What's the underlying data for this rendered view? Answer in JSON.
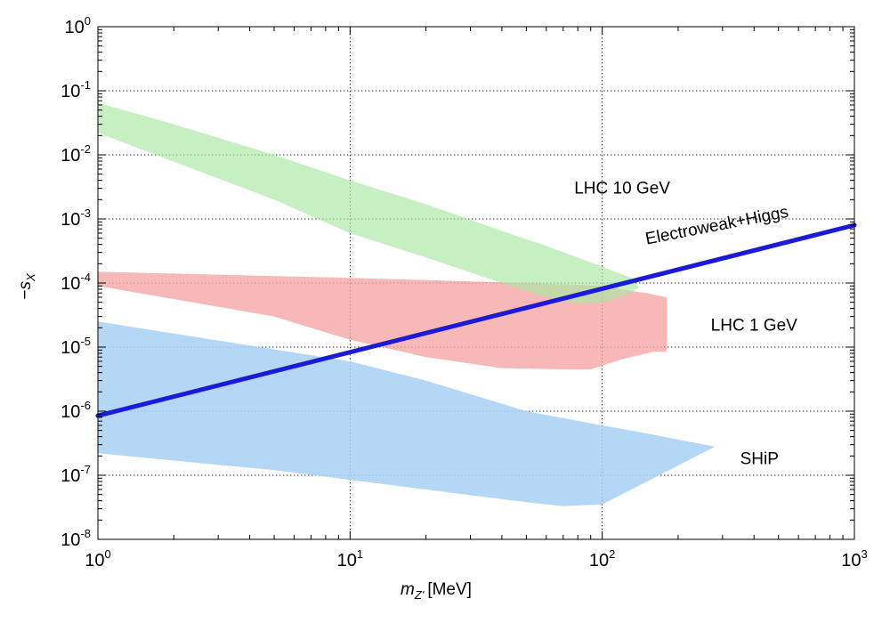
{
  "chart_data": {
    "type": "area",
    "title": "",
    "xlabel": {
      "main": "m",
      "sub": "Z'",
      "unit": "[MeV]"
    },
    "ylabel": {
      "prefix": "−",
      "main": "s",
      "sub": "X"
    },
    "xscale": "log",
    "yscale": "log",
    "xlim": [
      1,
      1000
    ],
    "ylim": [
      1e-08,
      1
    ],
    "grid": true,
    "x_ticks": [
      {
        "base": "10",
        "exp": "0"
      },
      {
        "base": "10",
        "exp": "1"
      },
      {
        "base": "10",
        "exp": "2"
      },
      {
        "base": "10",
        "exp": "3"
      }
    ],
    "y_ticks": [
      {
        "base": "10",
        "exp": "0"
      },
      {
        "base": "10",
        "exp": "-1"
      },
      {
        "base": "10",
        "exp": "-2"
      },
      {
        "base": "10",
        "exp": "-3"
      },
      {
        "base": "10",
        "exp": "-4"
      },
      {
        "base": "10",
        "exp": "-5"
      },
      {
        "base": "10",
        "exp": "-6"
      },
      {
        "base": "10",
        "exp": "-7"
      },
      {
        "base": "10",
        "exp": "-8"
      }
    ],
    "regions": [
      {
        "name": "SHiP",
        "label": "SHiP",
        "color": "#a8d0f5",
        "opacity": 0.85,
        "upper": [
          [
            1,
            2.5e-05
          ],
          [
            10,
            6e-06
          ],
          [
            20,
            3e-06
          ],
          [
            50,
            1e-06
          ],
          [
            100,
            6e-07
          ],
          [
            150,
            4.5e-07
          ],
          [
            200,
            3.6e-07
          ],
          [
            280,
            2.8e-07
          ]
        ],
        "lower": [
          [
            1,
            2.2e-07
          ],
          [
            5,
            1.2e-07
          ],
          [
            20,
            6e-08
          ],
          [
            50,
            3.8e-08
          ],
          [
            70,
            3.3e-08
          ],
          [
            100,
            3.5e-08
          ],
          [
            280,
            2.8e-07
          ]
        ]
      },
      {
        "name": "LHC 1 GeV",
        "label": "LHC 1 GeV",
        "color": "#f5a0a0",
        "opacity": 0.75,
        "upper": [
          [
            1,
            0.00015
          ],
          [
            10,
            0.00012
          ],
          [
            50,
            0.0001
          ],
          [
            100,
            9e-05
          ],
          [
            130,
            7.5e-05
          ],
          [
            150,
            7e-05
          ],
          [
            180,
            6e-05
          ]
        ],
        "lower": [
          [
            1,
            9e-05
          ],
          [
            5,
            3e-05
          ],
          [
            10,
            1.3e-05
          ],
          [
            20,
            7e-06
          ],
          [
            40,
            4.7e-06
          ],
          [
            70,
            4.5e-06
          ],
          [
            90,
            4.5e-06
          ],
          [
            120,
            6.5e-06
          ],
          [
            160,
            8.5e-06
          ],
          [
            180,
            8.5e-06
          ]
        ]
      },
      {
        "name": "LHC 10 GeV",
        "label": "LHC 10 GeV",
        "color": "#a8e8a0",
        "opacity": 0.65,
        "upper": [
          [
            1,
            0.065
          ],
          [
            2,
            0.03
          ],
          [
            5,
            0.01
          ],
          [
            10,
            0.004
          ],
          [
            20,
            0.0017
          ],
          [
            40,
            0.00065
          ],
          [
            60,
            0.00038
          ],
          [
            80,
            0.00025
          ],
          [
            100,
            0.00018
          ],
          [
            130,
            0.00012
          ],
          [
            140,
            8.5e-05
          ]
        ],
        "lower": [
          [
            1,
            0.022
          ],
          [
            5,
            0.002
          ],
          [
            10,
            0.0006
          ],
          [
            20,
            0.00025
          ],
          [
            40,
            0.0001
          ],
          [
            60,
            6e-05
          ],
          [
            80,
            4.8e-05
          ],
          [
            100,
            5e-05
          ],
          [
            130,
            7e-05
          ],
          [
            140,
            8.5e-05
          ]
        ]
      }
    ],
    "series": [
      {
        "name": "Electroweak+Higgs",
        "label": "Electroweak+Higgs",
        "color": "#1a1ad9",
        "x": [
          1,
          1000
        ],
        "y": [
          8.5e-07,
          0.0008
        ]
      }
    ],
    "annotations": [
      {
        "text": "LHC 10 GeV",
        "x": 120,
        "y": 0.0025,
        "anchor": "middle",
        "rotation_deg": 0
      },
      {
        "text": "LHC 1 GeV",
        "x": 400,
        "y": 1.8e-05,
        "anchor": "middle",
        "rotation_deg": 0
      },
      {
        "text": "SHiP",
        "x": 420,
        "y": 1.5e-07,
        "anchor": "middle",
        "rotation_deg": 0
      },
      {
        "text": "Electroweak+Higgs",
        "x": 150,
        "y": 0.0004,
        "anchor": "start",
        "rotation_deg": -11
      }
    ]
  }
}
